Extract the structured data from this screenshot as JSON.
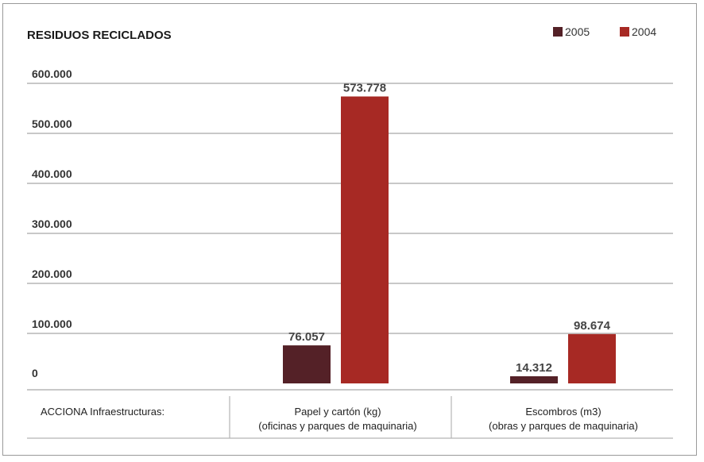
{
  "colors": {
    "series_2005": "#542127",
    "series_2004": "#a72924",
    "grid": "#b5b5b5"
  },
  "chart_data": {
    "type": "bar",
    "title": "RESIDUOS RECICLADOS",
    "legend_position": "top-right",
    "grid": true,
    "ylim": [
      0,
      600000
    ],
    "y_ticks": [
      0,
      100000,
      200000,
      300000,
      400000,
      500000,
      600000
    ],
    "y_tick_labels": [
      "0",
      "100.000",
      "200.000",
      "300.000",
      "400.000",
      "500.000",
      "600.000"
    ],
    "categories": [
      "Papel y cartón (kg)",
      "Escombros (m3)"
    ],
    "category_sublabels": [
      "(oficinas y parques de maquinaria)",
      "(obras y parques de maquinaria)"
    ],
    "row_header": "ACCIONA Infraestructuras:",
    "series": [
      {
        "name": "2005",
        "color": "#542127",
        "values": [
          76057,
          14312
        ],
        "labels": [
          "76.057",
          "14.312"
        ]
      },
      {
        "name": "2004",
        "color": "#a72924",
        "values": [
          573778,
          98674
        ],
        "labels": [
          "573.778",
          "98.674"
        ]
      }
    ]
  }
}
